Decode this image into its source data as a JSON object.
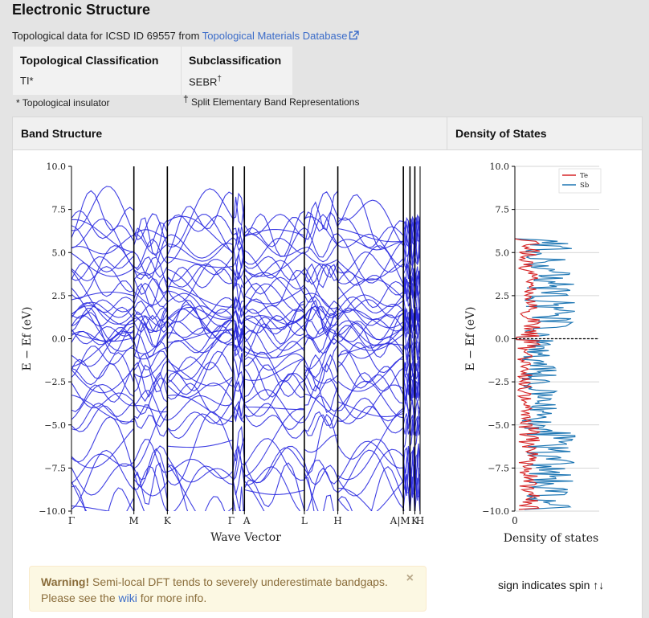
{
  "page": {
    "title": "Electronic Structure",
    "source_prefix": "Topological data for ICSD ID 69557 from ",
    "source_link": "Topological Materials Database"
  },
  "topology": {
    "classification_header": "Topological Classification",
    "classification_value": "TI*",
    "subclassification_header": "Subclassification",
    "subclassification_value": "SEBR",
    "subclassification_mark": "†",
    "footnote_ti": "* Topological insulator",
    "footnote_sebr_mark": "†",
    "footnote_sebr": " Split Elementary Band Representations"
  },
  "panel": {
    "band_header": "Band Structure",
    "dos_header": "Density of States"
  },
  "warning": {
    "title": "Warning!",
    "text1": " Semi-local DFT tends to severely underestimate bandgaps.",
    "text2_prefix": "Please see the ",
    "link": "wiki",
    "text2_suffix": " for more info.",
    "close": "×"
  },
  "spin_note": "sign indicates spin ↑↓",
  "colors": {
    "band_line": "#2b2be0",
    "te": "#d62728",
    "sb": "#1f77b4",
    "link": "#3b6cc9"
  },
  "chart_data": [
    {
      "type": "line",
      "title": "",
      "xlabel": "Wave Vector",
      "ylabel": "E − Ef (eV)",
      "ylim": [
        -10,
        10
      ],
      "yticks": [
        "10.0",
        "7.5",
        "5.0",
        "2.5",
        "0.0",
        "−2.5",
        "−5.0",
        "−7.5",
        "−10.0"
      ],
      "kpoint_labels": [
        "Γ",
        "M",
        "K",
        "Γ",
        "A",
        "L",
        "H",
        "A",
        "M",
        "K",
        "H"
      ],
      "kpoint_ticks": [
        "Γ",
        "M",
        "K",
        "Γ",
        "A",
        "L",
        "H",
        "A|M",
        "K",
        "H"
      ],
      "kpoint_positions": [
        0,
        0.179,
        0.275,
        0.463,
        0.496,
        0.668,
        0.764,
        0.952,
        0.971,
        0.985,
        1.0
      ],
      "grid": false,
      "legend": "none"
    },
    {
      "type": "line",
      "title": "",
      "xlabel": "Density of states",
      "ylabel": "E − Ef (eV)",
      "ylim": [
        -10,
        10
      ],
      "yticks": [
        "10.0",
        "7.5",
        "5.0",
        "2.5",
        "0.0",
        "−2.5",
        "−5.0",
        "−7.5",
        "−10.0"
      ],
      "xtick": "0",
      "series": [
        {
          "name": "Te"
        },
        {
          "name": "Sb"
        }
      ],
      "legend": "top-right",
      "fermi_line": 0
    }
  ]
}
